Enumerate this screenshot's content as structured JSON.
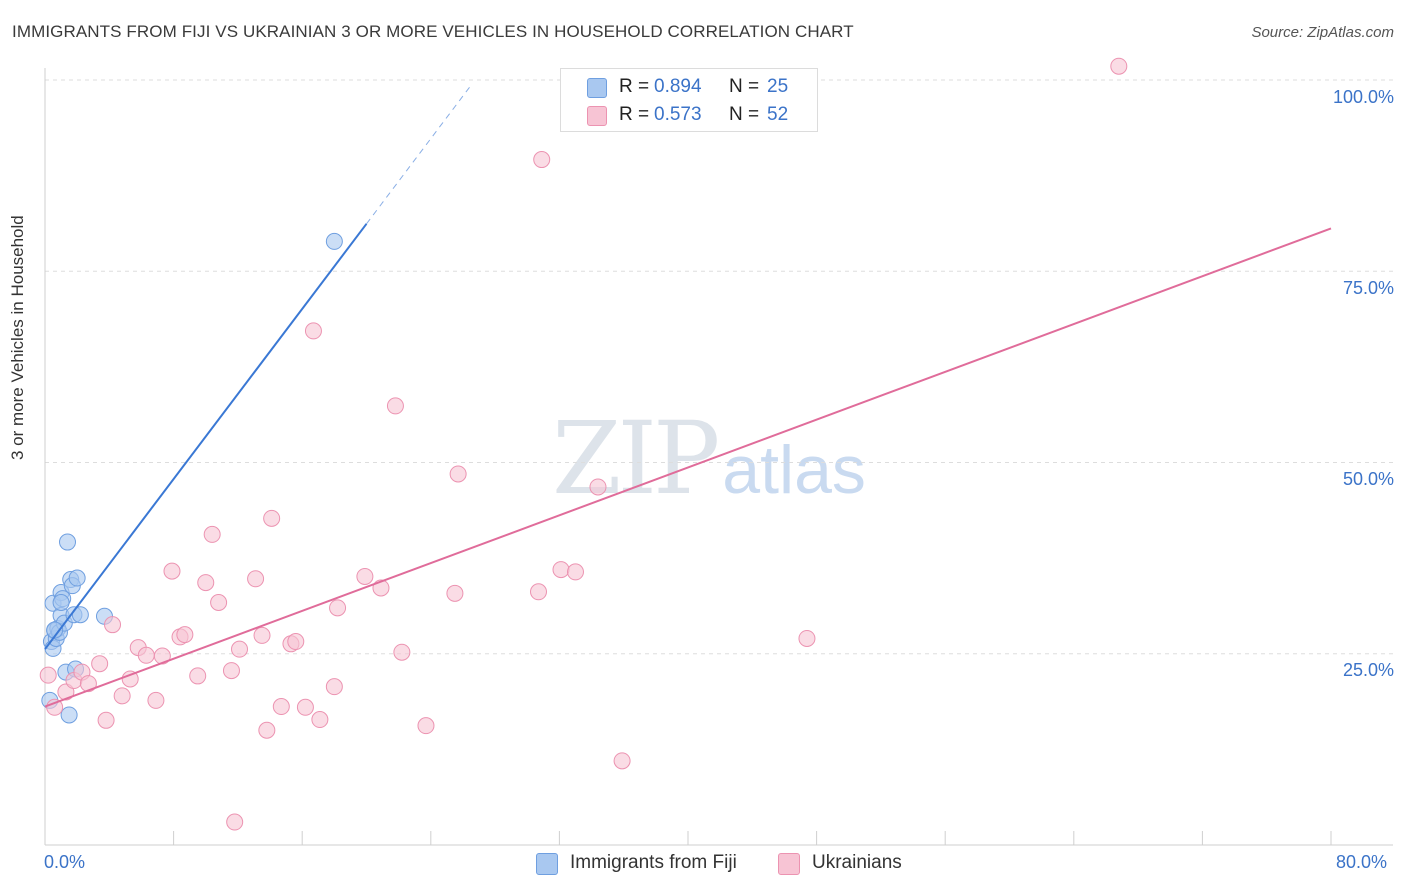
{
  "title": "IMMIGRANTS FROM FIJI VS UKRAINIAN 3 OR MORE VEHICLES IN HOUSEHOLD CORRELATION CHART",
  "source": "Source: ZipAtlas.com",
  "watermark": {
    "zip": "ZIP",
    "atlas": "atlas"
  },
  "legend_top": [
    {
      "r_label": "R =",
      "r_value": "0.894",
      "n_label": "N =",
      "n_value": "25"
    },
    {
      "r_label": "R =",
      "r_value": "0.573",
      "n_label": "N =",
      "n_value": "52"
    }
  ],
  "legend_bottom": [
    "Immigrants from Fiji",
    "Ukrainians"
  ],
  "colors": {
    "fiji_fill": "#a9c8f0",
    "fiji_stroke": "#6f9fe0",
    "fiji_line": "#3a78d4",
    "ukr_fill": "#f7c4d4",
    "ukr_stroke": "#ec93b1",
    "ukr_line": "#e06c9a",
    "tick_text": "#3b73c8",
    "grid": "#dddddd"
  },
  "chart_data": {
    "type": "scatter",
    "title": "IMMIGRANTS FROM FIJI VS UKRAINIAN 3 OR MORE VEHICLES IN HOUSEHOLD CORRELATION CHART",
    "xlabel": "",
    "ylabel": "3 or more Vehicles in Household",
    "xlim": [
      0,
      80
    ],
    "ylim": [
      0,
      100
    ],
    "x_tick_labels": [
      "0.0%",
      "80.0%"
    ],
    "y_tick_labels": [
      "25.0%",
      "50.0%",
      "75.0%",
      "100.0%"
    ],
    "y_ticks": [
      25,
      50,
      75,
      100
    ],
    "grid": true,
    "legend_position": "top-center",
    "series": [
      {
        "name": "Immigrants from Fiji",
        "points": [
          [
            0.3,
            18.9
          ],
          [
            0.4,
            26.6
          ],
          [
            0.5,
            25.7
          ],
          [
            0.5,
            31.6
          ],
          [
            0.6,
            28.0
          ],
          [
            0.7,
            27.0
          ],
          [
            0.8,
            28.3
          ],
          [
            0.9,
            27.8
          ],
          [
            1.0,
            30.0
          ],
          [
            1.0,
            33.0
          ],
          [
            1.1,
            32.2
          ],
          [
            1.2,
            29.0
          ],
          [
            1.3,
            22.6
          ],
          [
            1.4,
            39.6
          ],
          [
            1.5,
            17.0
          ],
          [
            1.6,
            34.7
          ],
          [
            1.7,
            33.9
          ],
          [
            1.8,
            30.1
          ],
          [
            1.9,
            23.0
          ],
          [
            2.0,
            34.9
          ],
          [
            2.2,
            30.1
          ],
          [
            3.7,
            29.9
          ],
          [
            18.0,
            78.9
          ],
          [
            0.6,
            28.1
          ],
          [
            1.0,
            31.7
          ]
        ],
        "trend": {
          "x": [
            0.0,
            20.0
          ],
          "y": [
            25.6,
            81.2
          ]
        },
        "trend_dashed": {
          "x": [
            20.0,
            26.5
          ],
          "y": [
            81.2,
            99.3
          ]
        }
      },
      {
        "name": "Ukrainians",
        "points": [
          [
            0.2,
            22.2
          ],
          [
            0.6,
            18.0
          ],
          [
            1.3,
            20.0
          ],
          [
            1.8,
            21.5
          ],
          [
            2.3,
            22.6
          ],
          [
            2.7,
            21.1
          ],
          [
            3.4,
            23.7
          ],
          [
            3.8,
            16.3
          ],
          [
            4.2,
            28.8
          ],
          [
            4.8,
            19.5
          ],
          [
            5.3,
            21.7
          ],
          [
            5.8,
            25.8
          ],
          [
            6.3,
            24.8
          ],
          [
            6.9,
            18.9
          ],
          [
            7.3,
            24.7
          ],
          [
            7.9,
            35.8
          ],
          [
            8.4,
            27.2
          ],
          [
            8.7,
            27.5
          ],
          [
            9.5,
            22.1
          ],
          [
            10.0,
            34.3
          ],
          [
            10.4,
            40.6
          ],
          [
            10.8,
            31.7
          ],
          [
            11.6,
            22.8
          ],
          [
            11.8,
            3.0
          ],
          [
            12.1,
            25.6
          ],
          [
            13.1,
            34.8
          ],
          [
            13.5,
            27.4
          ],
          [
            13.8,
            15.0
          ],
          [
            14.1,
            42.7
          ],
          [
            14.7,
            18.1
          ],
          [
            15.3,
            26.3
          ],
          [
            15.6,
            26.6
          ],
          [
            16.2,
            18.0
          ],
          [
            16.7,
            67.2
          ],
          [
            17.1,
            16.4
          ],
          [
            18.0,
            20.7
          ],
          [
            18.2,
            31.0
          ],
          [
            19.9,
            35.1
          ],
          [
            20.9,
            33.6
          ],
          [
            21.8,
            57.4
          ],
          [
            22.2,
            25.2
          ],
          [
            23.7,
            15.6
          ],
          [
            25.5,
            32.9
          ],
          [
            25.7,
            48.5
          ],
          [
            30.7,
            33.1
          ],
          [
            30.9,
            89.6
          ],
          [
            32.1,
            36.0
          ],
          [
            33.0,
            35.7
          ],
          [
            34.4,
            46.8
          ],
          [
            35.9,
            11.0
          ],
          [
            47.4,
            27.0
          ],
          [
            66.8,
            101.8
          ]
        ],
        "trend": {
          "x": [
            0.0,
            80.0
          ],
          "y": [
            18.1,
            80.6
          ]
        }
      }
    ]
  }
}
